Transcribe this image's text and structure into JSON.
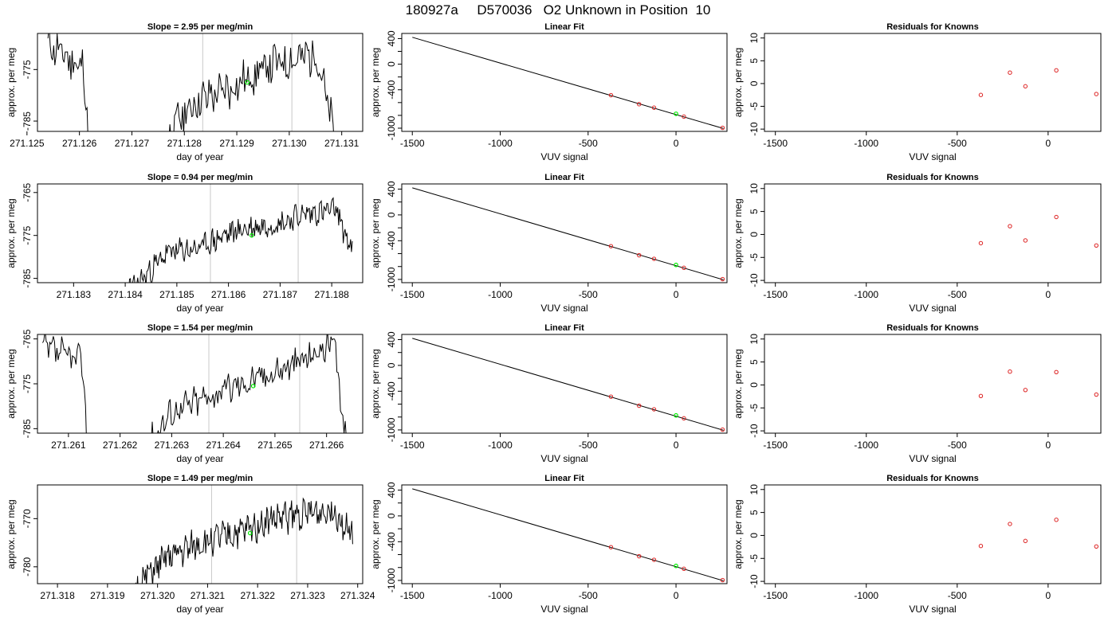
{
  "figure": {
    "title": "180927a     D570036   O2 Unknown in Position  10"
  },
  "chart_data": [
    {
      "type": "line",
      "panel": "time-series",
      "title": "Slope =  2.95  per meg/min",
      "xlabel": "day of year",
      "ylabel": "approx. per meg",
      "xlim": [
        271.1252,
        271.1314
      ],
      "ylim": [
        -787,
        -768
      ],
      "x_ticks": [
        "271.125",
        "271.126",
        "271.127",
        "271.128",
        "271.129",
        "271.130",
        "271.131"
      ],
      "y_ticks": [
        "-775",
        "-785"
      ],
      "vertical_lines": [
        271.12835,
        271.13005
      ],
      "highlight_point": {
        "x": 271.1292,
        "y": -777.5
      },
      "series": [
        {
          "x_start": 271.1254,
          "x_end": 271.1311,
          "y_clip": [
            -787,
            -768
          ],
          "trend": [
            [
              0,
              -770
            ],
            [
              0.12,
              -775
            ],
            [
              0.15,
              -800
            ],
            [
              0.2,
              -800
            ],
            [
              0.35,
              -800
            ],
            [
              0.42,
              -786
            ],
            [
              0.5,
              -781
            ],
            [
              0.6,
              -779
            ],
            [
              0.75,
              -774
            ],
            [
              0.9,
              -772
            ],
            [
              1,
              -800
            ]
          ],
          "amplitude": 3.5,
          "seed": 11
        }
      ]
    },
    {
      "type": "line",
      "panel": "linear-fit",
      "title": "Linear Fit",
      "xlabel": "VUV signal",
      "ylabel": "approx. per meg",
      "xlim": [
        -1560,
        290
      ],
      "ylim": [
        -1050,
        480
      ],
      "x_ticks": [
        -1500,
        -1000,
        -500,
        0
      ],
      "y_ticks": [
        400,
        0,
        -400,
        -1000
      ],
      "y_ticks_all": [
        400,
        200,
        0,
        -200,
        -400,
        -600,
        -800,
        -1000
      ],
      "fit_line": {
        "x": [
          -1500,
          270
        ],
        "y": [
          420,
          -1005
        ]
      },
      "known_points": {
        "x": [
          -370,
          -210,
          -125,
          45,
          265
        ],
        "y": [
          -485,
          -625,
          -680,
          -820,
          -995
        ]
      },
      "unknown_point": {
        "x": 0,
        "y": -775
      }
    },
    {
      "type": "scatter",
      "panel": "residuals",
      "title": "Residuals for Knowns",
      "xlabel": "VUV signal",
      "ylabel": "approx. per meg",
      "xlim": [
        -1560,
        290
      ],
      "ylim": [
        -10.5,
        11
      ],
      "x_ticks": [
        -1500,
        -1000,
        -500,
        0
      ],
      "y_ticks": [
        10,
        5,
        0,
        -5,
        -10
      ],
      "points": {
        "x": [
          -370,
          -210,
          -125,
          45,
          265
        ],
        "y": [
          -2.5,
          2.4,
          -0.6,
          2.9,
          -2.3
        ]
      }
    },
    {
      "type": "line",
      "panel": "time-series",
      "title": "Slope =  0.94  per meg/min",
      "xlabel": "day of year",
      "ylabel": "approx. per meg",
      "xlim": [
        271.1823,
        271.1886
      ],
      "ylim": [
        -786,
        -763
      ],
      "x_ticks": [
        "271.183",
        "271.184",
        "271.185",
        "271.186",
        "271.187",
        "271.188"
      ],
      "y_ticks": [
        "-765",
        "-775",
        "-785"
      ],
      "vertical_lines": [
        271.18565,
        271.18735
      ],
      "highlight_point": {
        "x": 271.18645,
        "y": -775
      },
      "series": [
        {
          "x_start": 271.1838,
          "x_end": 271.1884,
          "y_clip": [
            -786,
            -763
          ],
          "trend": [
            [
              0,
              -790
            ],
            [
              0.12,
              -785
            ],
            [
              0.22,
              -779
            ],
            [
              0.35,
              -778
            ],
            [
              0.5,
              -774
            ],
            [
              0.7,
              -772
            ],
            [
              0.8,
              -770
            ],
            [
              0.93,
              -769
            ],
            [
              1,
              -779
            ]
          ],
          "amplitude": 2.5,
          "seed": 23
        }
      ]
    },
    {
      "type": "line",
      "panel": "linear-fit",
      "title": "Linear Fit",
      "xlabel": "VUV signal",
      "ylabel": "approx. per meg",
      "xlim": [
        -1560,
        290
      ],
      "ylim": [
        -1050,
        480
      ],
      "x_ticks": [
        -1500,
        -1000,
        -500,
        0
      ],
      "y_ticks": [
        400,
        0,
        -400,
        -1000
      ],
      "y_ticks_all": [
        400,
        200,
        0,
        -200,
        -400,
        -600,
        -800,
        -1000
      ],
      "fit_line": {
        "x": [
          -1500,
          270
        ],
        "y": [
          420,
          -1005
        ]
      },
      "known_points": {
        "x": [
          -370,
          -210,
          -125,
          45,
          265
        ],
        "y": [
          -485,
          -625,
          -680,
          -820,
          -995
        ]
      },
      "unknown_point": {
        "x": 0,
        "y": -775
      }
    },
    {
      "type": "scatter",
      "panel": "residuals",
      "title": "Residuals for Knowns",
      "xlabel": "VUV signal",
      "ylabel": "approx. per meg",
      "xlim": [
        -1560,
        290
      ],
      "ylim": [
        -10.5,
        11
      ],
      "x_ticks": [
        -1500,
        -1000,
        -500,
        0
      ],
      "y_ticks": [
        10,
        5,
        0,
        -5,
        -10
      ],
      "points": {
        "x": [
          -370,
          -210,
          -125,
          45,
          265
        ],
        "y": [
          -1.9,
          1.8,
          -1.3,
          3.8,
          -2.4
        ]
      }
    },
    {
      "type": "line",
      "panel": "time-series",
      "title": "Slope =  1.54  per meg/min",
      "xlabel": "day of year",
      "ylabel": "approx. per meg",
      "xlim": [
        271.2604,
        271.2667
      ],
      "ylim": [
        -786,
        -764
      ],
      "x_ticks": [
        "271.261",
        "271.262",
        "271.263",
        "271.264",
        "271.265",
        "271.266"
      ],
      "y_ticks": [
        "-765",
        "-775",
        "-785"
      ],
      "vertical_lines": [
        271.26372,
        271.26548
      ],
      "highlight_point": {
        "x": 271.26458,
        "y": -775.5
      },
      "series": [
        {
          "x_start": 271.2605,
          "x_end": 271.2665,
          "y_clip": [
            -786,
            -764
          ],
          "trend": [
            [
              0,
              -767
            ],
            [
              0.13,
              -770
            ],
            [
              0.15,
              -800
            ],
            [
              0.28,
              -800
            ],
            [
              0.36,
              -786
            ],
            [
              0.42,
              -781
            ],
            [
              0.6,
              -776
            ],
            [
              0.8,
              -771
            ],
            [
              0.94,
              -766
            ],
            [
              1,
              -800
            ]
          ],
          "amplitude": 3,
          "seed": 37
        }
      ]
    },
    {
      "type": "line",
      "panel": "linear-fit",
      "title": "Linear Fit",
      "xlabel": "VUV signal",
      "ylabel": "approx. per meg",
      "xlim": [
        -1560,
        290
      ],
      "ylim": [
        -1050,
        480
      ],
      "x_ticks": [
        -1500,
        -1000,
        -500,
        0
      ],
      "y_ticks": [
        400,
        0,
        -400,
        -1000
      ],
      "y_ticks_all": [
        400,
        200,
        0,
        -200,
        -400,
        -600,
        -800,
        -1000
      ],
      "fit_line": {
        "x": [
          -1500,
          270
        ],
        "y": [
          420,
          -1005
        ]
      },
      "known_points": {
        "x": [
          -370,
          -210,
          -125,
          45,
          265
        ],
        "y": [
          -485,
          -625,
          -680,
          -820,
          -995
        ]
      },
      "unknown_point": {
        "x": 0,
        "y": -775
      }
    },
    {
      "type": "scatter",
      "panel": "residuals",
      "title": "Residuals for Knowns",
      "xlabel": "VUV signal",
      "ylabel": "approx. per meg",
      "xlim": [
        -1560,
        290
      ],
      "ylim": [
        -10.5,
        11
      ],
      "x_ticks": [
        -1500,
        -1000,
        -500,
        0
      ],
      "y_ticks": [
        10,
        5,
        0,
        -5,
        -10
      ],
      "points": {
        "x": [
          -370,
          -210,
          -125,
          45,
          265
        ],
        "y": [
          -2.4,
          2.9,
          -1.1,
          2.8,
          -2.1
        ]
      }
    },
    {
      "type": "line",
      "panel": "time-series",
      "title": "Slope =  1.49  per meg/min",
      "xlabel": "day of year",
      "ylabel": "approx. per meg",
      "xlim": [
        271.3176,
        271.3241
      ],
      "ylim": [
        -783.5,
        -763
      ],
      "x_ticks": [
        "271.318",
        "271.319",
        "271.320",
        "271.321",
        "271.322",
        "271.323",
        "271.324"
      ],
      "y_ticks": [
        "-770",
        "-780"
      ],
      "vertical_lines": [
        271.32108,
        271.32278
      ],
      "highlight_point": {
        "x": 271.32185,
        "y": -773
      },
      "series": [
        {
          "x_start": 271.3193,
          "x_end": 271.3239,
          "y_clip": [
            -783.5,
            -763
          ],
          "trend": [
            [
              0,
              -790
            ],
            [
              0.08,
              -783
            ],
            [
              0.2,
              -778
            ],
            [
              0.35,
              -775
            ],
            [
              0.5,
              -773
            ],
            [
              0.65,
              -770
            ],
            [
              0.8,
              -769
            ],
            [
              0.92,
              -768
            ],
            [
              1,
              -774
            ]
          ],
          "amplitude": 2.8,
          "seed": 51
        }
      ]
    },
    {
      "type": "line",
      "panel": "linear-fit",
      "title": "Linear Fit",
      "xlabel": "VUV signal",
      "ylabel": "approx. per meg",
      "xlim": [
        -1560,
        290
      ],
      "ylim": [
        -1050,
        480
      ],
      "x_ticks": [
        -1500,
        -1000,
        -500,
        0
      ],
      "y_ticks": [
        400,
        0,
        -400,
        -1000
      ],
      "y_ticks_all": [
        400,
        200,
        0,
        -200,
        -400,
        -600,
        -800,
        -1000
      ],
      "fit_line": {
        "x": [
          -1500,
          270
        ],
        "y": [
          420,
          -1005
        ]
      },
      "known_points": {
        "x": [
          -370,
          -210,
          -125,
          45,
          265
        ],
        "y": [
          -485,
          -625,
          -680,
          -820,
          -995
        ]
      },
      "unknown_point": {
        "x": 0,
        "y": -775
      }
    },
    {
      "type": "scatter",
      "panel": "residuals",
      "title": "Residuals for Knowns",
      "xlabel": "VUV signal",
      "ylabel": "approx. per meg",
      "xlim": [
        -1560,
        290
      ],
      "ylim": [
        -10.5,
        11
      ],
      "x_ticks": [
        -1500,
        -1000,
        -500,
        0
      ],
      "y_ticks": [
        10,
        5,
        0,
        -5,
        -10
      ],
      "points": {
        "x": [
          -370,
          -210,
          -125,
          45,
          265
        ],
        "y": [
          -2.3,
          2.5,
          -1.2,
          3.4,
          -2.4
        ]
      }
    }
  ],
  "colors": {
    "axis": "#000000",
    "trace": "#000000",
    "vline": "#c8c8c8",
    "unknown": "#00ee00",
    "known": "#dd2222"
  }
}
